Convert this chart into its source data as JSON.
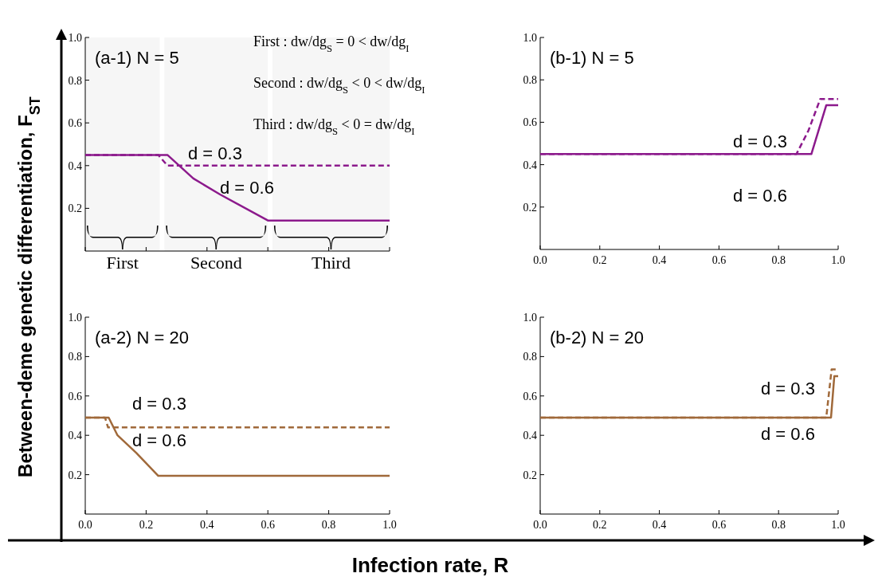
{
  "chart_data": [
    {
      "type": "line",
      "title": "(a-1) N = 5",
      "xlabel": "Infection rate, R",
      "ylabel": "Between-deme genetic differentiation, F$_{ST}$",
      "annotations": [
        "First : dw/dg$_{S}$ = 0 < dw/dg$_{I}$",
        "Second : dw/dg$_{S}$ < 0 < dw/dg$_{I}$",
        "Third : dw/dg$_{S}$ < 0 = dw/dg$_{I}$"
      ],
      "bands": [
        {
          "axis": "x",
          "from": 0,
          "to": 0.245,
          "label": "First"
        },
        {
          "axis": "x",
          "from": 0.26,
          "to": 0.6,
          "label": "Second"
        },
        {
          "axis": "x",
          "from": 0.615,
          "to": 1,
          "label": "Third"
        }
      ],
      "xlim": [
        0,
        1
      ],
      "ylim": [
        0,
        1
      ],
      "xticks": [
        {
          "value": 0,
          "label": null
        },
        {
          "value": 0.2,
          "label": null
        },
        {
          "value": 0.4,
          "label": null
        },
        {
          "value": 0.6,
          "label": null
        },
        {
          "value": 0.8,
          "label": null
        },
        {
          "value": 1,
          "label": null
        }
      ],
      "yticks": [
        {
          "value": 0.2,
          "label": "0.2"
        },
        {
          "value": 0.4,
          "label": "0.4"
        },
        {
          "value": 0.6,
          "label": "0.6"
        },
        {
          "value": 0.8,
          "label": "0.8"
        },
        {
          "value": 1,
          "label": "1.0"
        }
      ],
      "tick_labels": "y",
      "series": [
        {
          "name": "d = 0.3",
          "color": "#8c1a8c",
          "line_style": "dashed",
          "x": [
            0,
            0.24,
            0.27,
            1
          ],
          "values": [
            0.45,
            0.45,
            0.4,
            0.4
          ]
        },
        {
          "name": "d = 0.6",
          "color": "#8c1a8c",
          "line_style": "solid",
          "x": [
            0,
            0.27,
            0.355,
            0.443,
            0.6,
            1
          ],
          "values": [
            0.45,
            0.45,
            0.34,
            0.265,
            0.143,
            0.143
          ]
        }
      ]
    },
    {
      "type": "line",
      "title": "(b-1) N = 5",
      "xlim": [
        0,
        1
      ],
      "ylim": [
        0,
        1
      ],
      "xticks": [
        {
          "value": 0,
          "label": "0.0"
        },
        {
          "value": 0.2,
          "label": "0.2"
        },
        {
          "value": 0.4,
          "label": "0.4"
        },
        {
          "value": 0.6,
          "label": "0.6"
        },
        {
          "value": 0.8,
          "label": "0.8"
        },
        {
          "value": 1,
          "label": "1.0"
        }
      ],
      "yticks": [
        {
          "value": 0.2,
          "label": "0.2"
        },
        {
          "value": 0.4,
          "label": "0.4"
        },
        {
          "value": 0.6,
          "label": "0.6"
        },
        {
          "value": 0.8,
          "label": "0.8"
        },
        {
          "value": 1,
          "label": "1.0"
        }
      ],
      "series": [
        {
          "name": "d = 0.3",
          "color": "#8c1a8c",
          "line_style": "dashed",
          "x": [
            0,
            0.86,
            0.9,
            0.94,
            1
          ],
          "values": [
            0.45,
            0.45,
            0.56,
            0.71,
            0.71
          ]
        },
        {
          "name": "d = 0.6",
          "color": "#8c1a8c",
          "line_style": "solid",
          "x": [
            0,
            0.91,
            0.96,
            1
          ],
          "values": [
            0.45,
            0.45,
            0.68,
            0.68
          ]
        }
      ]
    },
    {
      "type": "line",
      "title": "(a-2) N = 20",
      "xlim": [
        0,
        1
      ],
      "ylim": [
        0,
        1
      ],
      "xticks": [
        {
          "value": 0,
          "label": "0.0"
        },
        {
          "value": 0.2,
          "label": "0.2"
        },
        {
          "value": 0.4,
          "label": "0.4"
        },
        {
          "value": 0.6,
          "label": "0.6"
        },
        {
          "value": 0.8,
          "label": "0.8"
        },
        {
          "value": 1,
          "label": "1.0"
        }
      ],
      "yticks": [
        {
          "value": 0.2,
          "label": "0.2"
        },
        {
          "value": 0.4,
          "label": "0.4"
        },
        {
          "value": 0.6,
          "label": "0.6"
        },
        {
          "value": 0.8,
          "label": "0.8"
        },
        {
          "value": 1,
          "label": "1.0"
        }
      ],
      "series": [
        {
          "name": "d = 0.3",
          "color": "#a0693a",
          "line_style": "dashed",
          "x": [
            0,
            0.065,
            0.075,
            1
          ],
          "values": [
            0.49,
            0.49,
            0.44,
            0.44
          ]
        },
        {
          "name": "d = 0.6",
          "color": "#a0693a",
          "line_style": "solid",
          "x": [
            0,
            0.077,
            0.106,
            0.168,
            0.24,
            1
          ],
          "values": [
            0.49,
            0.49,
            0.4,
            0.31,
            0.194,
            0.194
          ]
        }
      ]
    },
    {
      "type": "line",
      "title": "(b-2) N = 20",
      "xlim": [
        0,
        1
      ],
      "ylim": [
        0,
        1
      ],
      "xticks": [
        {
          "value": 0,
          "label": "0.0"
        },
        {
          "value": 0.2,
          "label": "0.2"
        },
        {
          "value": 0.4,
          "label": "0.4"
        },
        {
          "value": 0.6,
          "label": "0.6"
        },
        {
          "value": 0.8,
          "label": "0.8"
        },
        {
          "value": 1,
          "label": "1.0"
        }
      ],
      "yticks": [
        {
          "value": 0.2,
          "label": "0.2"
        },
        {
          "value": 0.4,
          "label": "0.4"
        },
        {
          "value": 0.6,
          "label": "0.6"
        },
        {
          "value": 0.8,
          "label": "0.8"
        },
        {
          "value": 1,
          "label": "1.0"
        }
      ],
      "series": [
        {
          "name": "d = 0.3",
          "color": "#a0693a",
          "line_style": "dashed",
          "x": [
            0,
            0.96,
            0.978,
            1
          ],
          "values": [
            0.49,
            0.49,
            0.735,
            0.735
          ]
        },
        {
          "name": "d = 0.6",
          "color": "#a0693a",
          "line_style": "solid",
          "x": [
            0,
            0.976,
            0.987,
            1
          ],
          "values": [
            0.49,
            0.49,
            0.7,
            0.7
          ]
        }
      ]
    }
  ]
}
